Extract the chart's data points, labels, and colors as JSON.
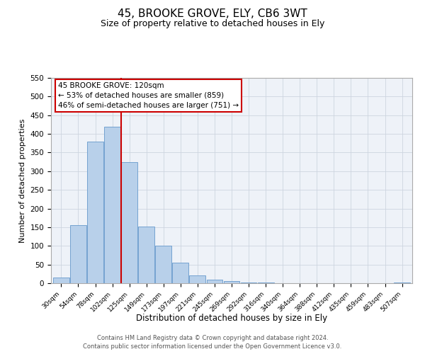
{
  "title": "45, BROOKE GROVE, ELY, CB6 3WT",
  "subtitle": "Size of property relative to detached houses in Ely",
  "xlabel": "Distribution of detached houses by size in Ely",
  "ylabel": "Number of detached properties",
  "bar_color": "#b8d0ea",
  "bar_edge_color": "#6699cc",
  "bin_labels": [
    "30sqm",
    "54sqm",
    "78sqm",
    "102sqm",
    "125sqm",
    "149sqm",
    "173sqm",
    "197sqm",
    "221sqm",
    "245sqm",
    "269sqm",
    "292sqm",
    "316sqm",
    "340sqm",
    "364sqm",
    "388sqm",
    "412sqm",
    "435sqm",
    "459sqm",
    "483sqm",
    "507sqm"
  ],
  "bar_heights": [
    15,
    155,
    380,
    420,
    325,
    152,
    100,
    55,
    20,
    10,
    5,
    2,
    1,
    0,
    0,
    0,
    0,
    0,
    0,
    0,
    2
  ],
  "vline_position": 4,
  "vline_color": "#cc0000",
  "ylim": [
    0,
    550
  ],
  "yticks": [
    0,
    50,
    100,
    150,
    200,
    250,
    300,
    350,
    400,
    450,
    500,
    550
  ],
  "annotation_title": "45 BROOKE GROVE: 120sqm",
  "annotation_line1": "← 53% of detached houses are smaller (859)",
  "annotation_line2": "46% of semi-detached houses are larger (751) →",
  "footer_line1": "Contains HM Land Registry data © Crown copyright and database right 2024.",
  "footer_line2": "Contains public sector information licensed under the Open Government Licence v3.0.",
  "bg_color": "#eef2f8",
  "grid_color": "#cdd5e0",
  "title_fontsize": 11,
  "subtitle_fontsize": 9
}
